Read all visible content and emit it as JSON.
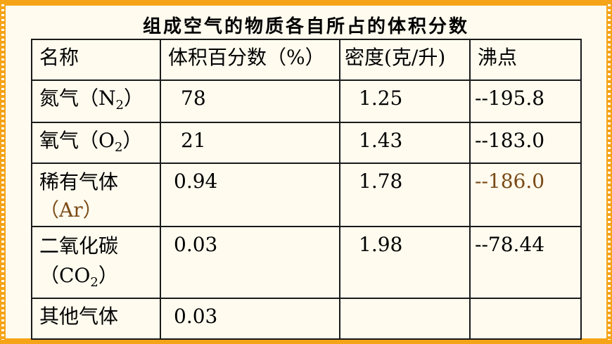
{
  "title": "组成空气的物质各自所占的体积分数",
  "headers": [
    "名称",
    "体积百分数（%）",
    "密度(克/升)",
    "沸点"
  ],
  "rows": [
    {
      "name_pre": "氮气（N",
      "name_sub": "2",
      "name_post": "）",
      "name2": "",
      "percent": "78",
      "density": "1.25",
      "boiling": "--195.8"
    },
    {
      "name_pre": "氧气（O",
      "name_sub": "2",
      "name_post": "）",
      "name2": "",
      "percent": "21",
      "density": "1.43",
      "boiling": "--183.0"
    },
    {
      "name_pre": "稀有气体",
      "name_sub": "",
      "name_post": "",
      "name2": "（Ar）",
      "percent": "0.94",
      "density": "1.78",
      "boiling": "--186.0"
    },
    {
      "name_pre": "二氧化碳",
      "name_sub": "",
      "name_post": "",
      "name2_pre": "（CO",
      "name2_sub": "2",
      "name2_post": "）",
      "percent": "0.03",
      "density": "1.98",
      "boiling": "--78.44"
    },
    {
      "name_pre": "其他气体",
      "percent": "0.03",
      "density": "",
      "boiling": ""
    }
  ],
  "colors": {
    "frame": "#f5a317",
    "ar_text": "#7a4a16"
  }
}
